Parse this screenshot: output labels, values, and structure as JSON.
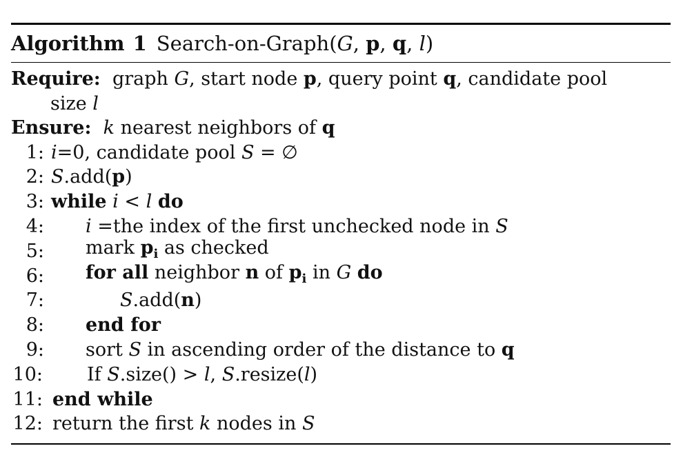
{
  "algorithm": {
    "label": "Algorithm",
    "number": "1",
    "title": "Search-on-Graph(G, p, q, l)",
    "require_label": "Require:",
    "require_text": "graph G, start node p, query point q, candidate pool",
    "require_text_cont": "size l",
    "ensure_label": "Ensure:",
    "ensure_text": "k nearest neighbors of q",
    "lines": [
      {
        "num": "1:",
        "text": "i=0, candidate pool S = ∅"
      },
      {
        "num": "2:",
        "text": "S.add(p)"
      },
      {
        "num": "3:",
        "text": "while i < l do"
      },
      {
        "num": "4:",
        "text": "i =the index of the first unchecked node in S"
      },
      {
        "num": "5:",
        "text": "mark pi as checked"
      },
      {
        "num": "6:",
        "text": "for all neighbor n of pi in G do"
      },
      {
        "num": "7:",
        "text": "S.add(n)"
      },
      {
        "num": "8:",
        "text": "end for"
      },
      {
        "num": "9:",
        "text": "sort S in ascending order of the distance to q"
      },
      {
        "num": "10:",
        "text": "If S.size() > l, S.resize(l)"
      },
      {
        "num": "11:",
        "text": "end while"
      },
      {
        "num": "12:",
        "text": "return the first k nodes in S"
      }
    ]
  }
}
